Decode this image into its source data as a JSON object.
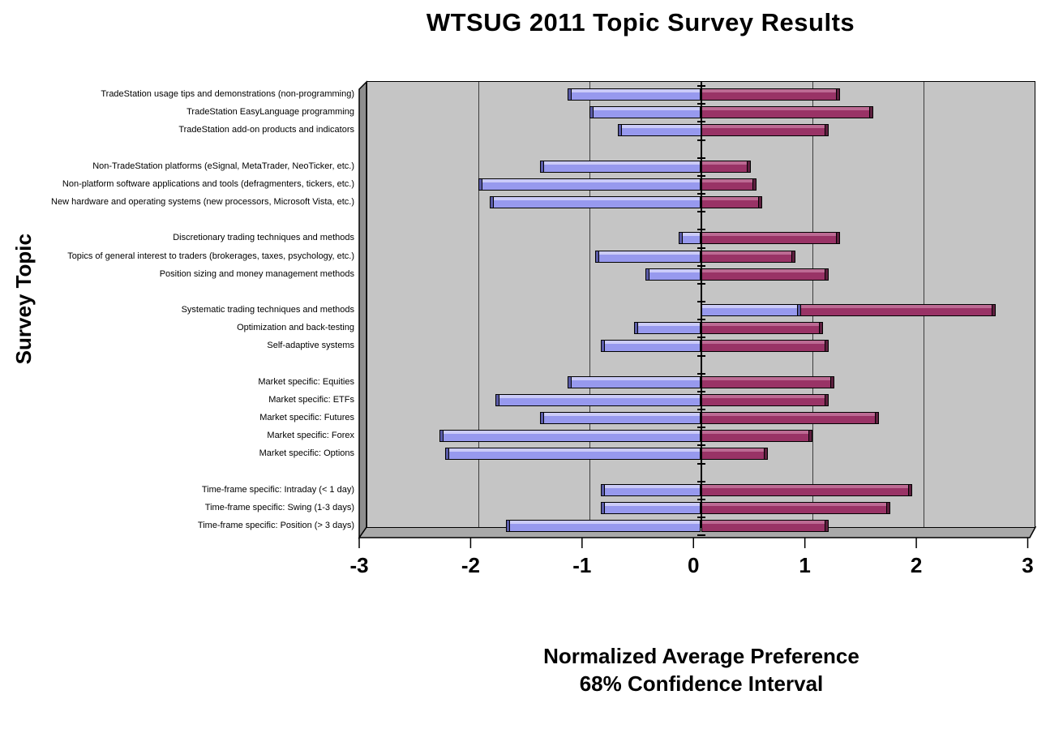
{
  "title": "WTSUG 2011 Topic Survey Results",
  "y_axis": {
    "label": "Survey Topic"
  },
  "x_axis": {
    "label_line1": "Normalized Average Preference",
    "label_line2": "68% Confidence Interval",
    "min": -3,
    "max": 3
  },
  "colors": {
    "lower_bar": "#9799EE",
    "lower_bar_highlight": "#CBCBF8",
    "lower_bar_shade": "#5B5CA8",
    "upper_bar": "#993366",
    "upper_bar_highlight": "#BC6A93",
    "upper_bar_shade": "#5E203F",
    "plot_wall": "#C5C5C5",
    "plot_floor": "#A9A9A9",
    "plot_side": "#8E8E8E"
  },
  "chart_data": {
    "type": "bar",
    "orientation": "horizontal",
    "title": "WTSUG 2011 Topic Survey Results",
    "xlabel": "Normalized Average Preference 68% Confidence Interval",
    "xlabel_lines": [
      "Normalized Average Preference",
      "68% Confidence Interval"
    ],
    "ylabel": "Survey Topic",
    "xlim": [
      -3,
      3
    ],
    "x_ticks": [
      -3,
      -2,
      -1,
      0,
      1,
      2,
      3
    ],
    "grid": true,
    "legend": false,
    "series": [
      {
        "name": "Confidence interval lower bound",
        "color": "#9799EE"
      },
      {
        "name": "Confidence interval upper bound",
        "color": "#993366"
      }
    ],
    "groups": [
      {
        "topics": [
          {
            "label": "TradeStation usage tips and demonstrations (non-programming)",
            "low": -1.2,
            "high": 1.25
          },
          {
            "label": "TradeStation EasyLanguage programming",
            "low": -1.0,
            "high": 1.55
          },
          {
            "label": "TradeStation add-on products and indicators",
            "low": -0.75,
            "high": 1.15
          }
        ]
      },
      {
        "topics": [
          {
            "label": "Non-TradeStation platforms (eSignal, MetaTrader, NeoTicker, etc.)",
            "low": -1.45,
            "high": 0.45
          },
          {
            "label": "Non-platform software applications and tools (defragmenters, tickers, etc.)",
            "low": -2.0,
            "high": 0.5
          },
          {
            "label": "New hardware and operating systems (new processors, Microsoft Vista, etc.)",
            "low": -1.9,
            "high": 0.55
          }
        ]
      },
      {
        "topics": [
          {
            "label": "Discretionary trading techniques and methods",
            "low": -0.2,
            "high": 1.25
          },
          {
            "label": "Topics of general interest to traders (brokerages, taxes, psychology, etc.)",
            "low": -0.95,
            "high": 0.85
          },
          {
            "label": "Position sizing and money management methods",
            "low": -0.5,
            "high": 1.15
          }
        ]
      },
      {
        "topics": [
          {
            "label": "Systematic trading techniques and methods",
            "low": 0.9,
            "high": 2.65
          },
          {
            "label": "Optimization and back-testing",
            "low": -0.6,
            "high": 1.1
          },
          {
            "label": "Self-adaptive systems",
            "low": -0.9,
            "high": 1.15
          }
        ]
      },
      {
        "topics": [
          {
            "label": "Market specific: Equities",
            "low": -1.2,
            "high": 1.2
          },
          {
            "label": "Market specific: ETFs",
            "low": -1.85,
            "high": 1.15
          },
          {
            "label": "Market specific: Futures",
            "low": -1.45,
            "high": 1.6
          },
          {
            "label": "Market specific: Forex",
            "low": -2.35,
            "high": 1.0
          },
          {
            "label": "Market specific: Options",
            "low": -2.3,
            "high": 0.6
          }
        ]
      },
      {
        "topics": [
          {
            "label": "Time-frame specific: Intraday (< 1 day)",
            "low": -0.9,
            "high": 1.9
          },
          {
            "label": "Time-frame specific: Swing (1-3 days)",
            "low": -0.9,
            "high": 1.7
          },
          {
            "label": "Time-frame specific: Position (> 3 days)",
            "low": -1.75,
            "high": 1.15
          }
        ]
      }
    ]
  }
}
